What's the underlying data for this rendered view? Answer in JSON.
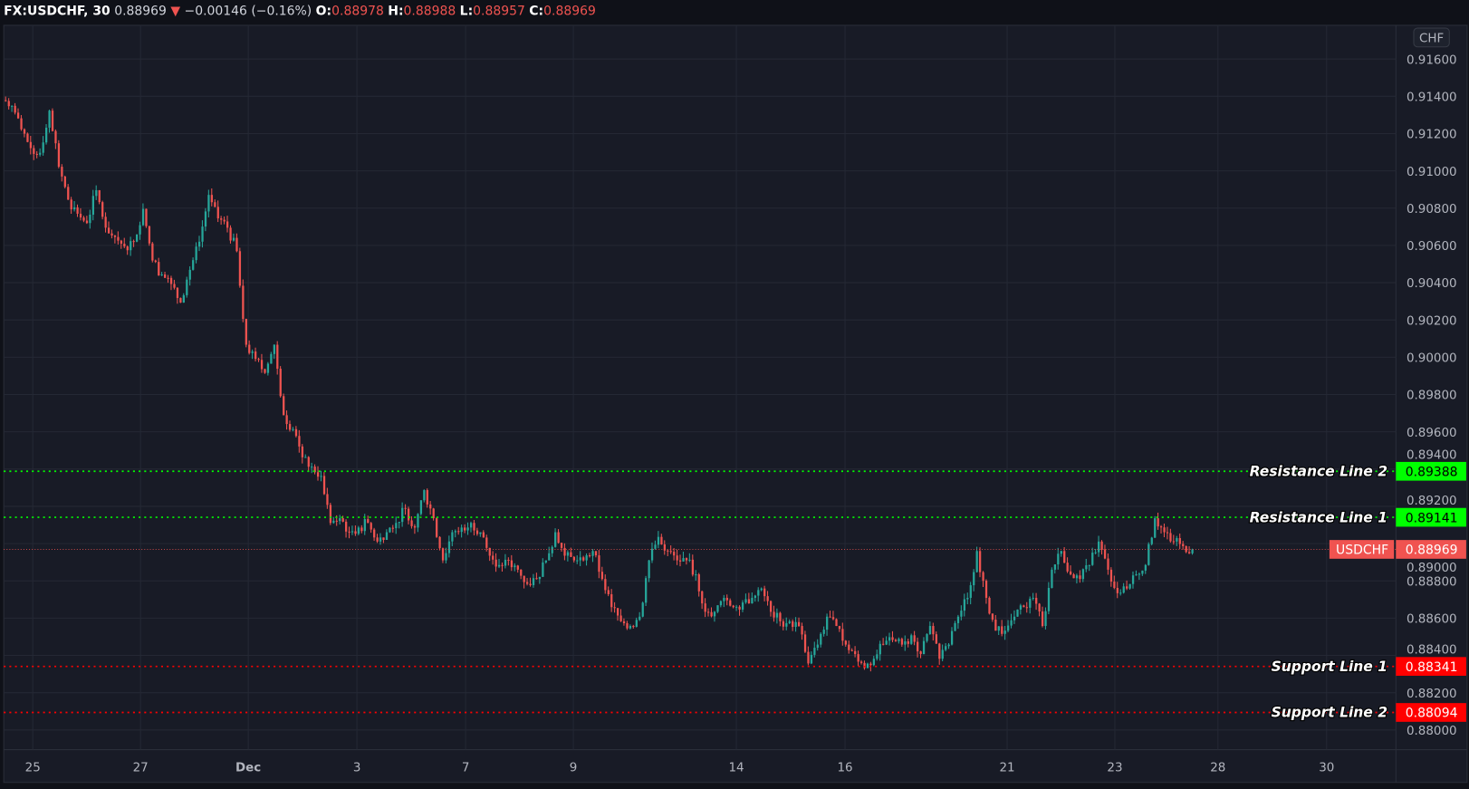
{
  "header": {
    "symbol": "FX:USDCHF, 30",
    "last": "0.88969",
    "change": "−0.00146 (−0.16%)",
    "o_label": "O:",
    "o": "0.88978",
    "h_label": "H:",
    "h": "0.88988",
    "l_label": "L:",
    "l": "0.88957",
    "c_label": "C:",
    "c": "0.88969",
    "direction_icon": "triangle-down-icon"
  },
  "currency_label": "CHF",
  "colors": {
    "background": "#181b26",
    "up": "#26a69a",
    "down": "#ef5350",
    "resistance": "#00ff00",
    "support": "#ff0000",
    "last_price": "#f05350"
  },
  "chart_data": {
    "type": "candlestick",
    "title": "FX:USDCHF, 30",
    "interval": "30 min",
    "ylim": [
      0.8795,
      0.917
    ],
    "price_ticks": [
      "0.91600",
      "0.91400",
      "0.91200",
      "0.91000",
      "0.90800",
      "0.90600",
      "0.90400",
      "0.90200",
      "0.90000",
      "0.89800",
      "0.89600",
      "0.89400",
      "0.89200",
      "0.89000",
      "0.88800",
      "0.88600",
      "0.88400",
      "0.88200",
      "0.88000"
    ],
    "date_ticks": [
      "25",
      "27",
      "Dec",
      "3",
      "7",
      "9",
      "14",
      "16",
      "21",
      "23",
      "28",
      "30"
    ],
    "grid": true,
    "approx_close_path": [
      0.91349,
      0.91223,
      0.91122,
      0.91097,
      0.91323,
      0.91022,
      0.90846,
      0.9077,
      0.9072,
      0.90896,
      0.90695,
      0.90645,
      0.90594,
      0.9062,
      0.90796,
      0.90519,
      0.90444,
      0.90393,
      0.90293,
      0.90469,
      0.9062,
      0.90871,
      0.90745,
      0.90695,
      0.90569,
      0.90067,
      0.89991,
      0.89916,
      0.90067,
      0.89689,
      0.89614,
      0.89463,
      0.89413,
      0.89363,
      0.89111,
      0.89136,
      0.89061,
      0.89086,
      0.89111,
      0.89011,
      0.89061,
      0.89111,
      0.89187,
      0.89086,
      0.89287,
      0.89136,
      0.8891,
      0.89061,
      0.89086,
      0.89111,
      0.89061,
      0.88935,
      0.88885,
      0.8891,
      0.8886,
      0.88784,
      0.8881,
      0.8891,
      0.89061,
      0.88935,
      0.8891,
      0.8891,
      0.8896,
      0.8881,
      0.88659,
      0.88583,
      0.88558,
      0.88608,
      0.8891,
      0.89036,
      0.8896,
      0.8891,
      0.8891,
      0.88835,
      0.88634,
      0.88634,
      0.88709,
      0.88659,
      0.88684,
      0.88709,
      0.88759,
      0.88634,
      0.88583,
      0.88583,
      0.88558,
      0.88357,
      0.88458,
      0.88608,
      0.88558,
      0.88458,
      0.88407,
      0.88332,
      0.88382,
      0.88458,
      0.88483,
      0.88458,
      0.88508,
      0.88407,
      0.88558,
      0.88382,
      0.88458,
      0.88608,
      0.88709,
      0.8896,
      0.88709,
      0.88533,
      0.88533,
      0.88608,
      0.88659,
      0.88709,
      0.88558,
      0.8886,
      0.8896,
      0.88835,
      0.8881,
      0.88885,
      0.89011,
      0.8886,
      0.88734,
      0.88759,
      0.88835,
      0.88885,
      0.89136,
      0.89061,
      0.89011,
      0.88986,
      0.88969
    ],
    "horizontal_lines": [
      {
        "name": "Resistance Line 2",
        "value": 0.89388,
        "value_label": "0.89388",
        "kind": "resistance"
      },
      {
        "name": "Resistance Line 1",
        "value": 0.89141,
        "value_label": "0.89141",
        "kind": "resistance"
      },
      {
        "name": "Support Line 1",
        "value": 0.88341,
        "value_label": "0.88341",
        "kind": "support"
      },
      {
        "name": "Support Line 2",
        "value": 0.88094,
        "value_label": "0.88094",
        "kind": "support"
      }
    ],
    "last_price": {
      "symbol": "USDCHF",
      "value": 0.88969,
      "value_label": "0.88969"
    }
  }
}
